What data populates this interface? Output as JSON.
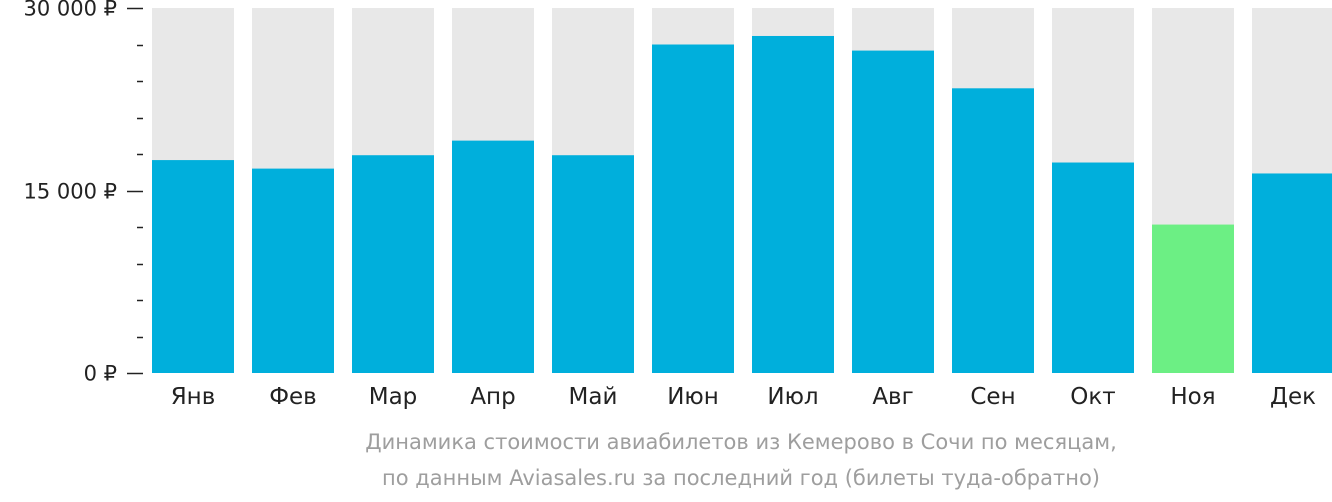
{
  "chart_data": {
    "type": "bar",
    "categories": [
      "Янв",
      "Фев",
      "Мар",
      "Апр",
      "Май",
      "Июн",
      "Июл",
      "Авг",
      "Сен",
      "Окт",
      "Ноя",
      "Дек"
    ],
    "values": [
      17500,
      16800,
      17900,
      19100,
      17900,
      27000,
      27700,
      26500,
      23400,
      17300,
      12200,
      16400
    ],
    "ylim": [
      0,
      30000
    ],
    "y_ticks": [
      {
        "value": 0,
        "label": "0 ₽"
      },
      {
        "value": 15000,
        "label": "15 000 ₽"
      },
      {
        "value": 30000,
        "label": "30 000 ₽"
      }
    ],
    "minor_tick_step": 3000,
    "highlight_index": 10,
    "colors": {
      "bar": "#00afdc",
      "highlight": "#6cef84",
      "background_bar": "#e8e8e8",
      "axis": "#222222",
      "caption": "#9e9e9e"
    },
    "caption_line1": "Динамика стоимости авиабилетов из Кемерово в Сочи по месяцам,",
    "caption_line2": "по данным Aviasales.ru за последний год (билеты туда-обратно)"
  }
}
